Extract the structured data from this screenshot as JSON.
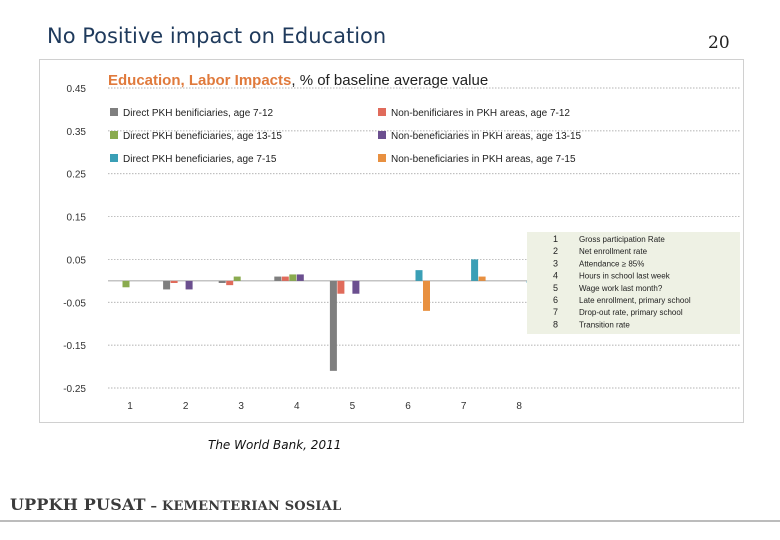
{
  "slide": {
    "title": "No Positive impact on Education",
    "page_number": "20",
    "source": "The World Bank, 2011",
    "footer_bold": "UPPKH PUSAT",
    "footer_rest": " – KEMENTERIAN SOSIAL"
  },
  "chart_data": {
    "type": "bar",
    "title_part1": "Education, Labor Impacts",
    "title_part2": ", % of baseline average value",
    "categories": [
      "1",
      "2",
      "3",
      "4",
      "5",
      "6",
      "7",
      "8"
    ],
    "yticks": [
      "0.45",
      "0.35",
      "0.25",
      "0.15",
      "0.05",
      "-0.05",
      "-0.15",
      "-0.25"
    ],
    "ylim": [
      -0.25,
      0.45
    ],
    "grid": true,
    "legend_position": "top",
    "series": [
      {
        "name": "Direct PKH benificiaries, age 7-12",
        "color": "#7f7f7f",
        "values": [
          0,
          -0.02,
          -0.005,
          0.01,
          -0.21,
          0,
          0,
          0
        ]
      },
      {
        "name": "Non-benificiares in PKH areas, age 7-12",
        "color": "#e06b5b",
        "values": [
          0,
          -0.005,
          -0.01,
          0.01,
          -0.03,
          0,
          0,
          0
        ]
      },
      {
        "name": "Direct PKH beneficiaries, age 13-15",
        "color": "#8aab4f",
        "values": [
          -0.015,
          0,
          0.01,
          0.015,
          0,
          0,
          0,
          0
        ]
      },
      {
        "name": "Non-beneficiaries in PKH areas, age 13-15",
        "color": "#6b4f8f",
        "values": [
          0,
          -0.02,
          0,
          0.015,
          -0.03,
          0,
          0,
          0
        ]
      },
      {
        "name": "Direct PKH beneficiaries, age 7-15",
        "color": "#3a9fb6",
        "values": [
          0,
          0,
          0,
          0,
          0,
          0.025,
          0.05,
          -0.005
        ]
      },
      {
        "name": "Non-beneficiaries in PKH areas, age 7-15",
        "color": "#e89040",
        "values": [
          0,
          0,
          0,
          0,
          0,
          -0.07,
          0.01,
          -0.005
        ]
      }
    ],
    "annotation_table": {
      "rows": [
        {
          "num": "1",
          "label": "Gross participation Rate"
        },
        {
          "num": "2",
          "label": "Net enrollment rate"
        },
        {
          "num": "3",
          "label": "Attendance ≥ 85%"
        },
        {
          "num": "4",
          "label": "Hours in school last week"
        },
        {
          "num": "5",
          "label": "Wage work last month?"
        },
        {
          "num": "6",
          "label": "Late enrollment, primary school"
        },
        {
          "num": "7",
          "label": "Drop-out rate, primary school"
        },
        {
          "num": "8",
          "label": "Transition rate"
        }
      ]
    }
  }
}
